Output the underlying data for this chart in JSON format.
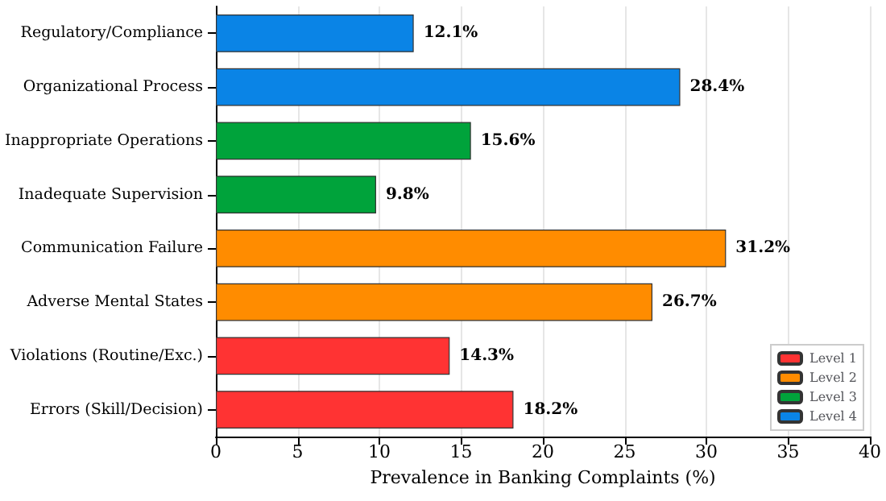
{
  "chart_data": {
    "type": "bar",
    "orientation": "horizontal",
    "xlabel": "Prevalence in Banking Complaints (%)",
    "categories": [
      "Regulatory/Compliance",
      "Organizational Process",
      "Inappropriate Operations",
      "Inadequate Supervision",
      "Communication Failure",
      "Adverse Mental States",
      "Violations (Routine/Exc.)",
      "Errors (Skill/Decision)"
    ],
    "series": [
      {
        "name": "Level 1",
        "color": "#ff3333",
        "values": [
          null,
          null,
          null,
          null,
          null,
          null,
          14.3,
          18.2
        ],
        "value_labels": [
          null,
          null,
          null,
          null,
          null,
          null,
          "14.3%",
          "18.2%"
        ]
      },
      {
        "name": "Level 2",
        "color": "#ff8c00",
        "values": [
          null,
          null,
          null,
          null,
          31.2,
          26.7,
          null,
          null
        ],
        "value_labels": [
          null,
          null,
          null,
          null,
          "31.2%",
          "26.7%",
          null,
          null
        ]
      },
      {
        "name": "Level 3",
        "color": "#00a33b",
        "values": [
          null,
          null,
          15.6,
          9.8,
          null,
          null,
          null,
          null
        ],
        "value_labels": [
          null,
          null,
          "15.6%",
          "9.8%",
          null,
          null,
          null,
          null
        ]
      },
      {
        "name": "Level 4",
        "color": "#0a84e6",
        "values": [
          12.1,
          28.4,
          null,
          null,
          null,
          null,
          null,
          null
        ],
        "value_labels": [
          "12.1%",
          "28.4%",
          null,
          null,
          null,
          null,
          null,
          null
        ]
      }
    ],
    "xlim": [
      0,
      40
    ],
    "xticks": [
      0,
      5,
      10,
      15,
      20,
      25,
      30,
      35,
      40
    ],
    "grid": "x",
    "legend": "bottom right"
  }
}
